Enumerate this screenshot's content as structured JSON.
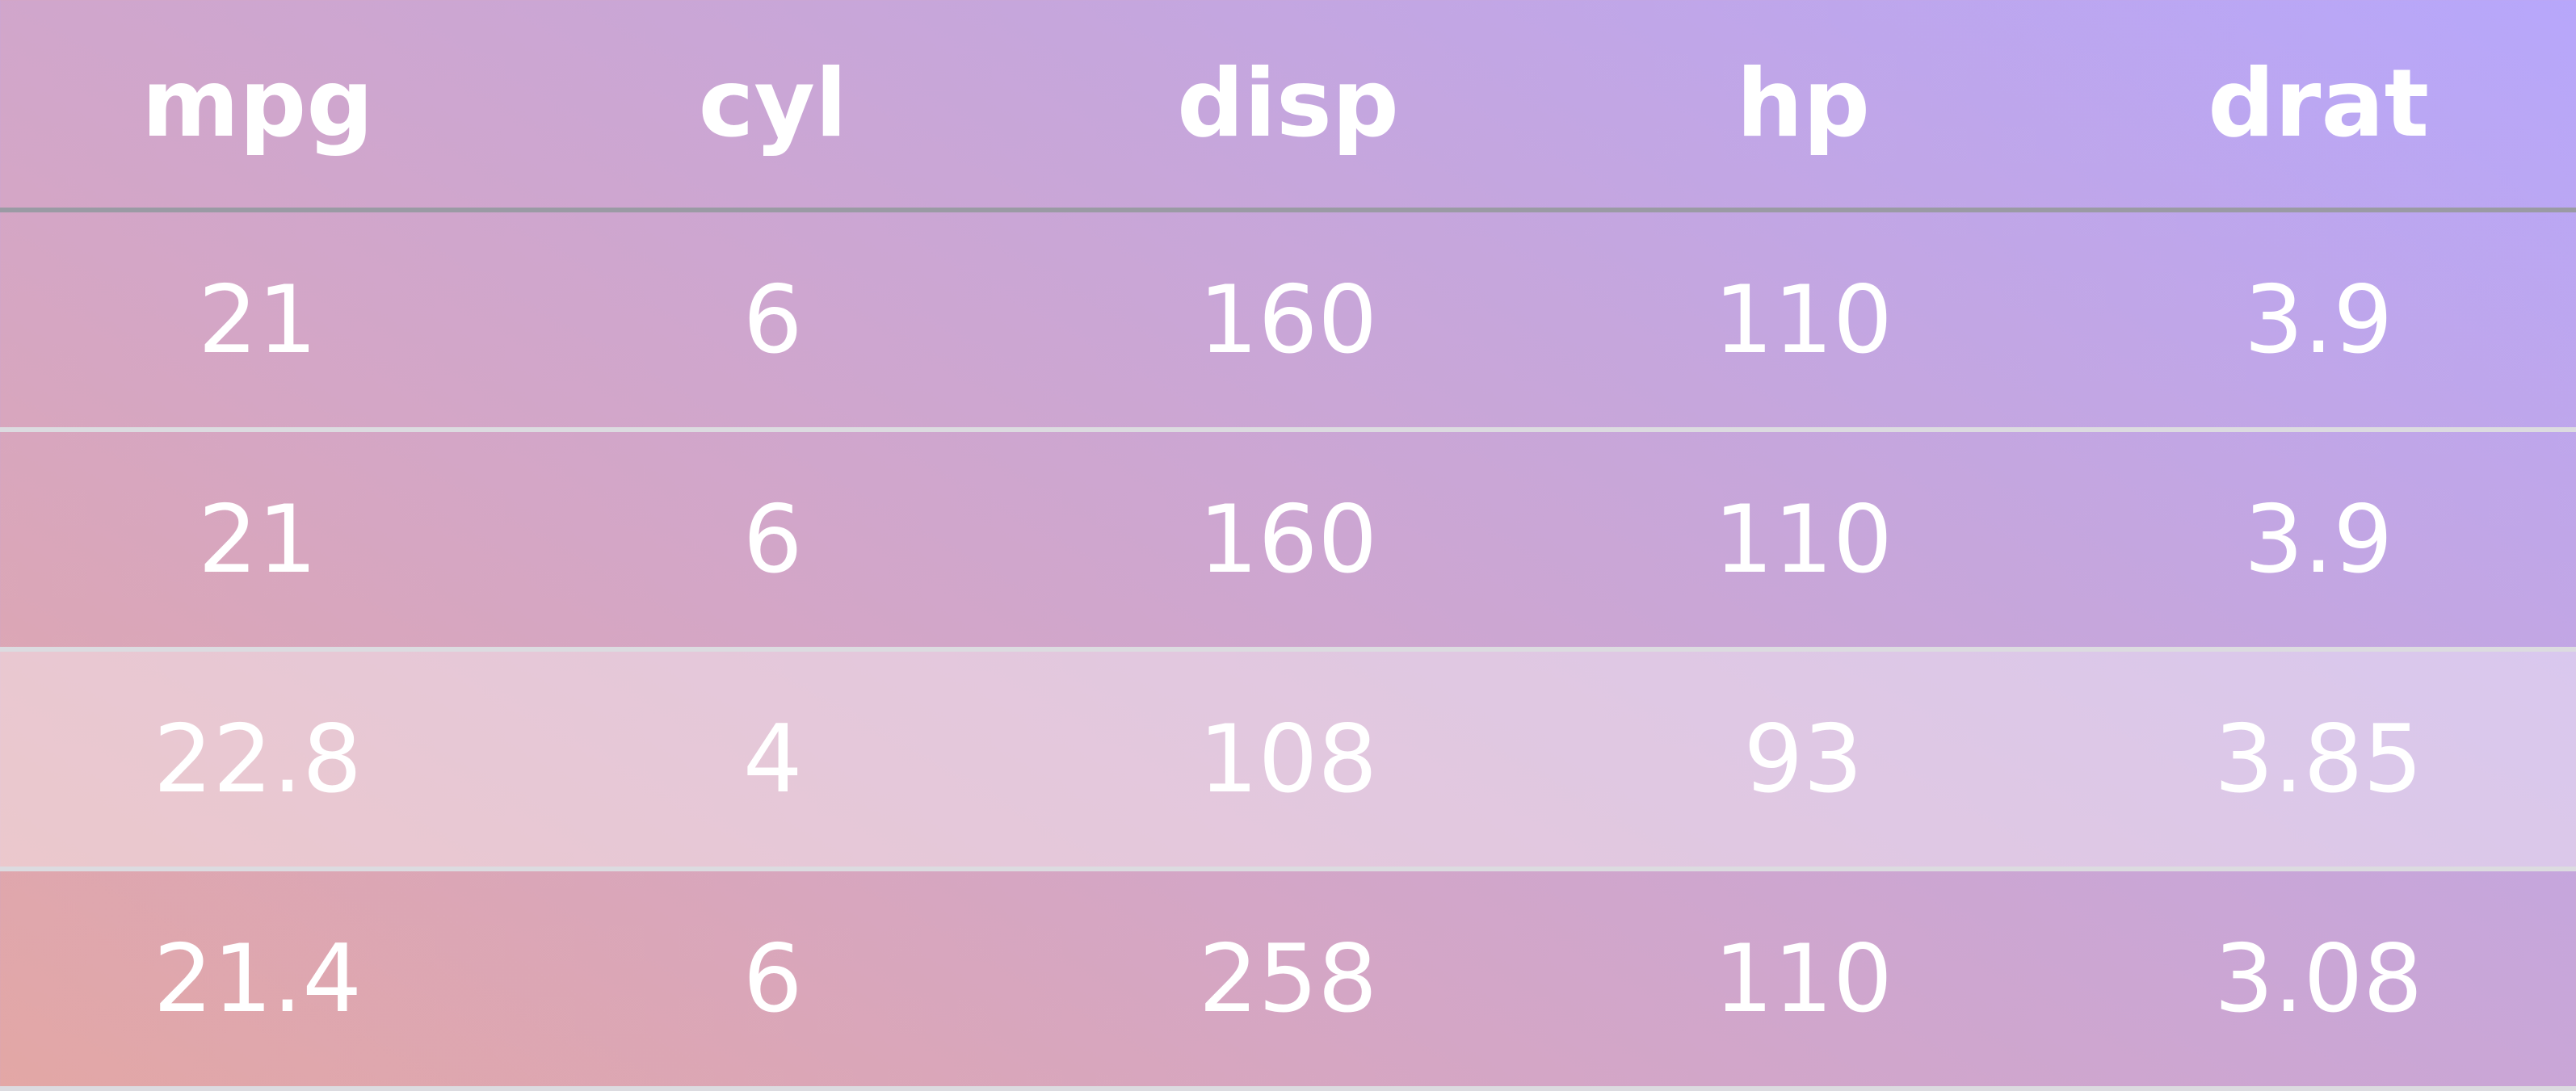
{
  "table": {
    "columns": [
      "mpg",
      "cyl",
      "disp",
      "hp",
      "drat"
    ],
    "rows": [
      [
        "21",
        "6",
        "160",
        "110",
        "3.9"
      ],
      [
        "21",
        "6",
        "160",
        "110",
        "3.9"
      ],
      [
        "22.8",
        "4",
        "108",
        "93",
        "3.85"
      ],
      [
        "21.4",
        "6",
        "258",
        "110",
        "3.08"
      ]
    ],
    "highlighted_row_index": 2
  },
  "colors": {
    "gradient": [
      "#b7a7fb",
      "#c6a6dc",
      "#d4a6c6",
      "#e3a7a5"
    ],
    "text": "#ffffff",
    "header_rule": "#9a9aa4",
    "row_rule": "#dcdbe0"
  }
}
